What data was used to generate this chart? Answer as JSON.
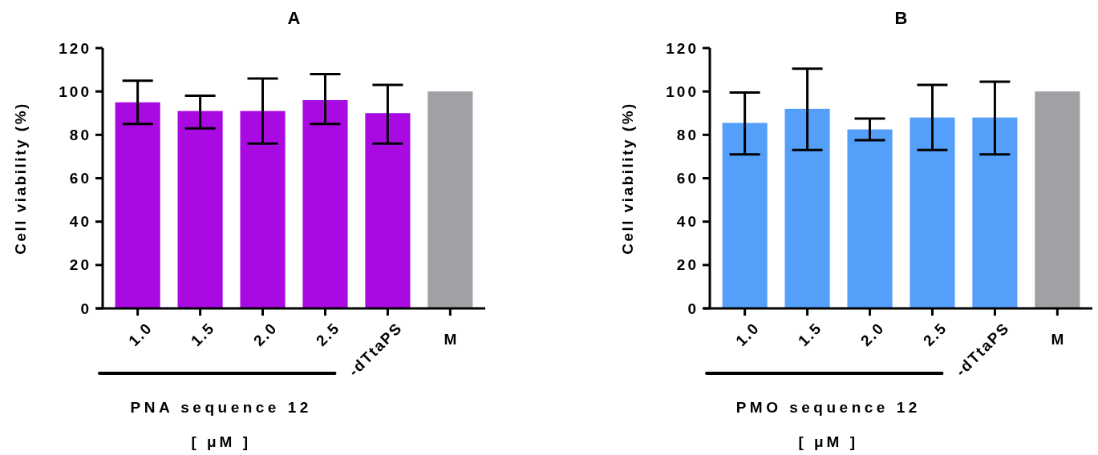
{
  "chart_data": [
    {
      "type": "bar",
      "title": "A",
      "ylabel": "Cell viability (%)",
      "xlabel": "PNA sequence 12",
      "annotations": [
        "[ μM ]"
      ],
      "categories": [
        "1.0",
        "1.5",
        "2.0",
        "2.5",
        "-dTtaPS",
        "M"
      ],
      "values": [
        95,
        91,
        91,
        96,
        90,
        100
      ],
      "errors": [
        [
          85,
          105
        ],
        [
          83,
          98
        ],
        [
          76,
          106
        ],
        [
          85,
          108
        ],
        [
          76,
          103
        ],
        null
      ],
      "colors": [
        "#a90ae2",
        "#a90ae2",
        "#a90ae2",
        "#a90ae2",
        "#a90ae2",
        "#a0a0a5"
      ],
      "ylim": [
        0,
        120
      ],
      "yticks": [
        0,
        20,
        40,
        60,
        80,
        100,
        120
      ]
    },
    {
      "type": "bar",
      "title": "B",
      "ylabel": "Cell viability (%)",
      "xlabel": "PMO sequence 12",
      "annotations": [
        "[ μM ]"
      ],
      "categories": [
        "1.0",
        "1.5",
        "2.0",
        "2.5",
        "-dTtaPS",
        "M"
      ],
      "values": [
        85.5,
        92,
        82.5,
        88,
        88,
        100
      ],
      "errors": [
        [
          71,
          99.5
        ],
        [
          73,
          110.5
        ],
        [
          77.5,
          87.5
        ],
        [
          73,
          103
        ],
        [
          71,
          104.5
        ],
        null
      ],
      "colors": [
        "#549ffa",
        "#549ffa",
        "#549ffa",
        "#549ffa",
        "#549ffa",
        "#a0a0a5"
      ],
      "ylim": [
        0,
        120
      ],
      "yticks": [
        0,
        20,
        40,
        60,
        80,
        100,
        120
      ]
    }
  ]
}
